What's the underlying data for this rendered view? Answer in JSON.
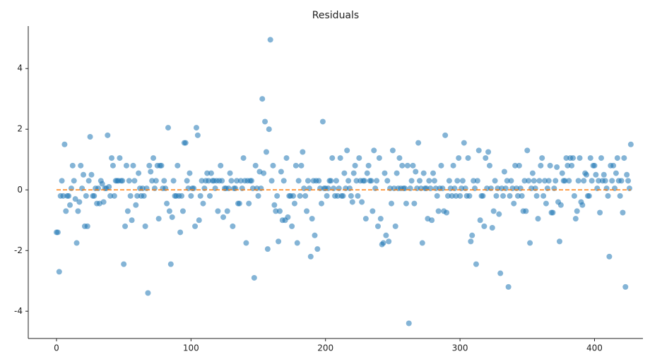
{
  "chart_data": {
    "type": "scatter",
    "title": "Residuals",
    "x": [
      0,
      1,
      2,
      3,
      4,
      5,
      6,
      7,
      8,
      9,
      10,
      11,
      12,
      13,
      14,
      15,
      16,
      17,
      18,
      19,
      20,
      21,
      22,
      23,
      24,
      25,
      26,
      27,
      28,
      29,
      30,
      31,
      32,
      33,
      34,
      35,
      36,
      37,
      38,
      39,
      40,
      41,
      42,
      43,
      44,
      45,
      46,
      47,
      48,
      49,
      50,
      51,
      52,
      53,
      54,
      55,
      56,
      57,
      58,
      59,
      60,
      61,
      62,
      63,
      64,
      65,
      66,
      67,
      68,
      69,
      70,
      71,
      72,
      73,
      74,
      75,
      76,
      77,
      78,
      79,
      80,
      81,
      82,
      83,
      84,
      85,
      86,
      87,
      88,
      89,
      90,
      91,
      92,
      93,
      94,
      95,
      96,
      97,
      98,
      99,
      100,
      101,
      102,
      103,
      104,
      105,
      106,
      107,
      108,
      109,
      110,
      111,
      112,
      113,
      114,
      115,
      116,
      117,
      118,
      119,
      120,
      121,
      122,
      123,
      124,
      125,
      126,
      127,
      128,
      129,
      130,
      131,
      132,
      133,
      134,
      135,
      136,
      137,
      138,
      139,
      140,
      141,
      142,
      143,
      144,
      145,
      146,
      147,
      148,
      149,
      150,
      151,
      152,
      153,
      154,
      155,
      156,
      157,
      158,
      159,
      160,
      161,
      162,
      163,
      164,
      165,
      166,
      167,
      168,
      169,
      170,
      171,
      172,
      173,
      174,
      175,
      176,
      177,
      178,
      179,
      180,
      181,
      182,
      183,
      184,
      185,
      186,
      187,
      188,
      189,
      190,
      191,
      192,
      193,
      194,
      195,
      196,
      197,
      198,
      199,
      200,
      201,
      202,
      203,
      204,
      205,
      206,
      207,
      208,
      209,
      210,
      211,
      212,
      213,
      214,
      215,
      216,
      217,
      218,
      219,
      220,
      221,
      222,
      223,
      224,
      225,
      226,
      227,
      228,
      229,
      230,
      231,
      232,
      233,
      234,
      235,
      236,
      237,
      238,
      239,
      240,
      241,
      242,
      243,
      244,
      245,
      246,
      247,
      248,
      249,
      250,
      251,
      252,
      253,
      254,
      255,
      256,
      257,
      258,
      259,
      260,
      261,
      262,
      263,
      264,
      265,
      266,
      267,
      268,
      269,
      270,
      271,
      272,
      273,
      274,
      275,
      276,
      277,
      278,
      279,
      280,
      281,
      282,
      283,
      284,
      285,
      286,
      287,
      288,
      289,
      290,
      291,
      292,
      293,
      294,
      295,
      296,
      297,
      298,
      299,
      300,
      301,
      302,
      303,
      304,
      305,
      306,
      307,
      308,
      309,
      310,
      311,
      312,
      313,
      314,
      315,
      316,
      317,
      318,
      319,
      320,
      321,
      322,
      323,
      324,
      325,
      326,
      327,
      328,
      329,
      330,
      331,
      332,
      333,
      334,
      335,
      336,
      337,
      338,
      339,
      340,
      341,
      342,
      343,
      344,
      345,
      346,
      347,
      348,
      349,
      350,
      351,
      352,
      353,
      354,
      355,
      356,
      357,
      358,
      359,
      360,
      361,
      362,
      363,
      364,
      365,
      366,
      367,
      368,
      369,
      370,
      371,
      372,
      373,
      374,
      375,
      376,
      377,
      378,
      379,
      380,
      381,
      382,
      383,
      384,
      385,
      386,
      387,
      388,
      389,
      390,
      391,
      392,
      393,
      394,
      395,
      396,
      397,
      398,
      399,
      400,
      401,
      402,
      403,
      404,
      405,
      406,
      407,
      408,
      409,
      410,
      411,
      412,
      413,
      414,
      415,
      416,
      417,
      418,
      419,
      420,
      421,
      422,
      423,
      424,
      425,
      426,
      427
    ],
    "values": [
      -1.4,
      -1.4,
      -2.7,
      -0.2,
      0.3,
      -0.2,
      1.5,
      -0.7,
      -0.2,
      -0.2,
      -0.5,
      0.05,
      0.8,
      0.3,
      -0.3,
      -1.75,
      -0.7,
      -0.4,
      0.8,
      0.05,
      0.5,
      -1.2,
      -0.2,
      -1.2,
      0.3,
      1.75,
      0.5,
      -0.2,
      -0.2,
      0.05,
      -0.45,
      0.05,
      -0.45,
      0.3,
      0.2,
      -0.4,
      0.05,
      0.05,
      1.8,
      0.1,
      -0.2,
      1.05,
      0.8,
      -0.2,
      0.3,
      0.3,
      0.3,
      1.05,
      0.3,
      0.3,
      -2.45,
      -1.2,
      0.8,
      -0.7,
      0.3,
      -0.2,
      -1.0,
      0.8,
      0.3,
      -0.5,
      -0.2,
      0.55,
      0.05,
      -0.2,
      0.05,
      -0.2,
      -1.2,
      0.05,
      -3.4,
      0.8,
      0.6,
      0.3,
      1.05,
      0.05,
      0.3,
      0.8,
      -0.95,
      0.8,
      0.8,
      0.05,
      0.3,
      0.05,
      -0.45,
      2.05,
      -0.7,
      -2.45,
      -0.9,
      0.3,
      -0.2,
      -0.2,
      0.8,
      -0.2,
      -1.4,
      -0.2,
      -0.7,
      1.55,
      1.55,
      0.3,
      0.05,
      0.55,
      -0.2,
      0.05,
      0.05,
      -1.2,
      2.05,
      1.8,
      -1.0,
      -0.2,
      0.3,
      -0.45,
      0.05,
      0.3,
      0.55,
      0.3,
      -0.2,
      0.55,
      0.3,
      0.3,
      0.05,
      0.3,
      -0.7,
      0.3,
      0.8,
      0.3,
      -0.9,
      0.05,
      0.05,
      -0.7,
      0.05,
      0.55,
      0.3,
      -1.2,
      0.05,
      0.05,
      0.3,
      -0.45,
      -0.45,
      0.3,
      0.05,
      1.05,
      0.3,
      -1.75,
      0.3,
      -0.45,
      0.3,
      0.3,
      0.05,
      -2.9,
      0.8,
      0.05,
      -0.2,
      0.6,
      0.05,
      3.0,
      0.55,
      2.25,
      1.25,
      -1.95,
      2.0,
      4.95,
      0.3,
      0.8,
      -0.5,
      -0.7,
      -0.2,
      -1.7,
      -0.7,
      0.6,
      -1.0,
      0.3,
      -1.0,
      1.05,
      -0.9,
      -0.2,
      -0.2,
      -1.2,
      -0.2,
      -0.45,
      0.8,
      -1.75,
      0.3,
      -0.2,
      0.8,
      1.25,
      0.05,
      -0.2,
      -0.7,
      0.3,
      0.05,
      -2.2,
      -0.95,
      0.3,
      -1.5,
      0.3,
      -1.95,
      0.3,
      0.05,
      -0.45,
      2.25,
      0.05,
      0.05,
      -0.2,
      0.05,
      0.3,
      0.3,
      1.05,
      0.05,
      -0.2,
      0.3,
      -0.2,
      0.05,
      1.05,
      -0.2,
      -0.2,
      0.55,
      0.05,
      1.3,
      0.3,
      0.05,
      -0.2,
      -0.4,
      0.55,
      0.8,
      0.3,
      -0.2,
      1.05,
      0.3,
      -0.4,
      0.3,
      0.3,
      -0.95,
      0.55,
      0.8,
      0.3,
      0.3,
      -0.7,
      1.3,
      0.05,
      0.3,
      -1.2,
      1.05,
      -0.95,
      -1.8,
      -1.75,
      0.55,
      -1.5,
      0.3,
      -1.7,
      0.05,
      -0.45,
      1.3,
      0.05,
      -1.2,
      0.55,
      0.05,
      1.05,
      0.05,
      0.8,
      0.05,
      0.05,
      -0.45,
      0.8,
      -4.4,
      0.05,
      0.3,
      0.8,
      -0.45,
      0.6,
      0.05,
      1.55,
      0.3,
      0.05,
      -1.75,
      0.55,
      0.05,
      0.05,
      -0.95,
      0.3,
      0.05,
      -1.0,
      0.55,
      0.3,
      0.05,
      -0.2,
      -0.7,
      0.05,
      0.8,
      0.05,
      -0.7,
      1.8,
      -0.75,
      -0.2,
      0.3,
      0.05,
      -0.2,
      0.8,
      0.05,
      -0.2,
      0.3,
      1.05,
      -0.2,
      0.05,
      0.3,
      1.55,
      0.05,
      -0.2,
      1.05,
      -0.2,
      -1.7,
      -1.5,
      0.3,
      0.05,
      -2.45,
      0.3,
      1.3,
      -1.0,
      -0.2,
      -0.2,
      -1.2,
      1.05,
      0.05,
      1.25,
      0.8,
      0.05,
      -1.25,
      -0.7,
      0.3,
      -0.2,
      0.05,
      -0.8,
      -2.75,
      0.05,
      -0.2,
      0.6,
      0.05,
      0.3,
      -3.2,
      -0.2,
      0.3,
      0.05,
      -0.45,
      0.8,
      0.05,
      -0.2,
      0.8,
      0.05,
      -0.2,
      -0.7,
      0.3,
      -0.7,
      1.3,
      0.3,
      -1.75,
      0.05,
      0.55,
      0.3,
      0.05,
      -0.2,
      -0.95,
      0.3,
      0.8,
      1.05,
      -0.2,
      0.3,
      -0.45,
      0.05,
      0.3,
      0.8,
      -0.75,
      -0.75,
      0.05,
      0.3,
      0.75,
      -0.4,
      -1.7,
      -0.5,
      0.55,
      0.3,
      0.3,
      1.05,
      0.8,
      0.3,
      1.05,
      0.8,
      1.05,
      -0.2,
      -0.95,
      -0.7,
      0.3,
      1.05,
      -0.4,
      -0.5,
      0.3,
      0.55,
      0.5,
      -0.2,
      -0.2,
      1.05,
      0.3,
      0.8,
      0.8,
      0.5,
      0.05,
      0.3,
      -0.75,
      1.05,
      0.3,
      0.5,
      0.3,
      0.05,
      -0.2,
      -2.2,
      0.8,
      0.3,
      0.8,
      0.05,
      0.55,
      1.05,
      0.3,
      -0.2,
      0.3,
      -0.75,
      1.05,
      -3.2,
      0.5,
      0.3,
      0.05,
      1.5
    ],
    "color": "#1f77b4",
    "reference_line": {
      "y": 0,
      "color": "#ff7f0e"
    },
    "xlim": [
      -21,
      436
    ],
    "xticks": [
      0,
      100,
      200,
      300,
      400
    ],
    "ylim": [
      -4.9,
      5.4
    ],
    "yticks": [
      -4,
      -2,
      0,
      2,
      4
    ]
  }
}
